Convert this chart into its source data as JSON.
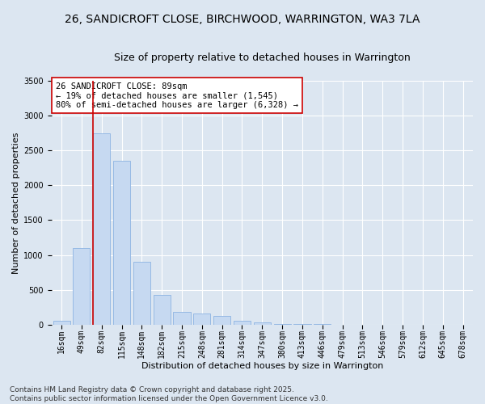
{
  "title_line1": "26, SANDICROFT CLOSE, BIRCHWOOD, WARRINGTON, WA3 7LA",
  "title_line2": "Size of property relative to detached houses in Warrington",
  "xlabel": "Distribution of detached houses by size in Warrington",
  "ylabel": "Number of detached properties",
  "categories": [
    "16sqm",
    "49sqm",
    "82sqm",
    "115sqm",
    "148sqm",
    "182sqm",
    "215sqm",
    "248sqm",
    "281sqm",
    "314sqm",
    "347sqm",
    "380sqm",
    "413sqm",
    "446sqm",
    "479sqm",
    "513sqm",
    "546sqm",
    "579sqm",
    "612sqm",
    "645sqm",
    "678sqm"
  ],
  "values": [
    60,
    1100,
    2750,
    2350,
    900,
    430,
    185,
    160,
    120,
    60,
    30,
    15,
    8,
    4,
    2,
    1,
    1,
    0,
    0,
    0,
    0
  ],
  "bar_color": "#c6d9f1",
  "bar_edge_color": "#8db3e2",
  "vline_color": "#cc0000",
  "annotation_text": "26 SANDICROFT CLOSE: 89sqm\n← 19% of detached houses are smaller (1,545)\n80% of semi-detached houses are larger (6,328) →",
  "annotation_box_facecolor": "#ffffff",
  "annotation_box_edgecolor": "#cc0000",
  "ylim": [
    0,
    3500
  ],
  "yticks": [
    0,
    500,
    1000,
    1500,
    2000,
    2500,
    3000,
    3500
  ],
  "background_color": "#dce6f1",
  "plot_bg_color": "#dce6f1",
  "footer_text": "Contains HM Land Registry data © Crown copyright and database right 2025.\nContains public sector information licensed under the Open Government Licence v3.0.",
  "title_fontsize": 10,
  "subtitle_fontsize": 9,
  "axis_label_fontsize": 8,
  "tick_fontsize": 7,
  "annotation_fontsize": 7.5,
  "footer_fontsize": 6.5,
  "vline_bin_index": 2
}
